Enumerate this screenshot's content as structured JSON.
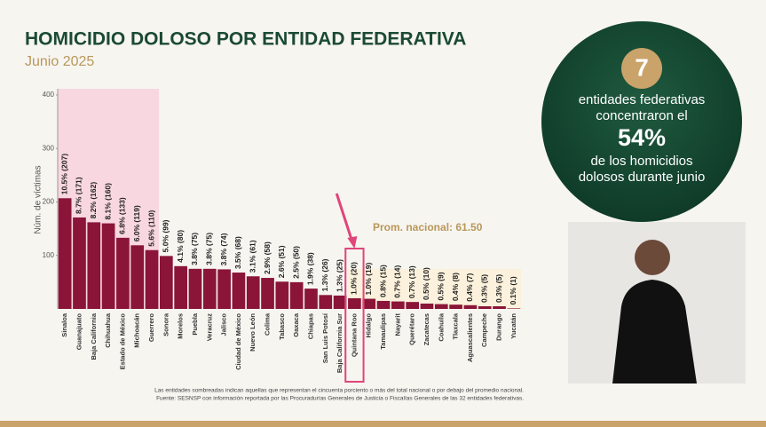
{
  "chart_data": {
    "type": "bar",
    "title": "HOMICIDIO DOLOSO POR ENTIDAD FEDERATIVA",
    "subtitle": "Junio 2025",
    "y_label": "Núm. de víctimas",
    "categories": [
      "Sinaloa",
      "Guanajuato",
      "Baja California",
      "Chihuahua",
      "Estado de México",
      "Michoacán",
      "Guerrero",
      "Sonora",
      "Morelos",
      "Puebla",
      "Veracruz",
      "Jalisco",
      "Ciudad de México",
      "Nuevo León",
      "Colima",
      "Tabasco",
      "Oaxaca",
      "Chiapas",
      "San Luis Potosí",
      "Baja California Sur",
      "Quintana Roo",
      "Hidalgo",
      "Tamaulipas",
      "Nayarit",
      "Querétaro",
      "Zacatecas",
      "Coahuila",
      "Tlaxcala",
      "Aguascalientes",
      "Campeche",
      "Durango",
      "Yucatán"
    ],
    "values": [
      207,
      171,
      162,
      160,
      133,
      119,
      110,
      99,
      80,
      75,
      75,
      74,
      68,
      61,
      58,
      51,
      50,
      38,
      26,
      25,
      20,
      19,
      15,
      14,
      13,
      10,
      9,
      8,
      7,
      5,
      5,
      1
    ],
    "value_labels": [
      "10.5% (207)",
      "8.7% (171)",
      "8.2% (162)",
      "8.1% (160)",
      "6.8% (133)",
      "6.0% (119)",
      "5.6% (110)",
      "5.0% (99)",
      "4.1% (80)",
      "3.8% (75)",
      "3.8% (75)",
      "3.8% (74)",
      "3.5% (68)",
      "3.1% (61)",
      "2.9% (58)",
      "2.6% (51)",
      "2.5% (50)",
      "1.9% (38)",
      "1.3% (26)",
      "1.3% (25)",
      "1.0% (20)",
      "1.0% (19)",
      "0.8% (15)",
      "0.7% (14)",
      "0.7% (13)",
      "0.5% (10)",
      "0.5% (9)",
      "0.4% (8)",
      "0.4% (7)",
      "0.3% (5)",
      "0.3% (5)",
      "0.1% (1)"
    ],
    "color": "#8a1538",
    "ylim": [
      0,
      400
    ],
    "yticks": [
      100,
      200,
      300,
      400
    ],
    "average": 61.5,
    "average_label": "Prom. nacional: 61.50",
    "highlight": "Quintana Roo"
  },
  "notes": [
    "Las entidades sombreadas indican aquellas que representan el cincuenta porciento o más del total nacional o por debajo del promedio nacional.",
    "Fuente: SESNSP con información reportada por las Procuradurías Generales de Justicia o Fiscalías Generales de las 32 entidades federativas."
  ],
  "card": {
    "number": "7",
    "line1": "entidades federativas",
    "line2": "concentraron el",
    "percent": "54%",
    "line3": "de los homicidios",
    "line4": "dolosos durante junio"
  }
}
